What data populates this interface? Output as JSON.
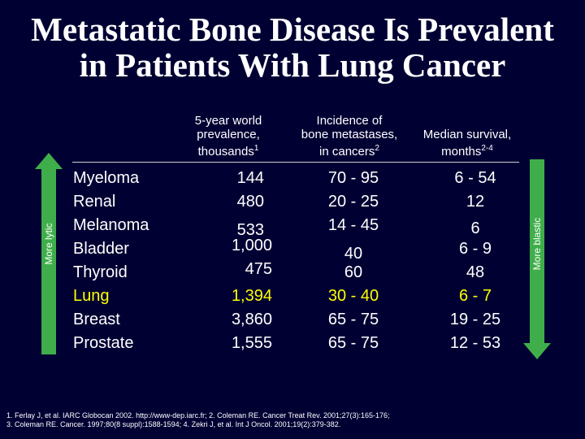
{
  "title": {
    "line1": "Metastatic Bone Disease Is Prevalent",
    "line2": "in Patients With Lung Cancer"
  },
  "headers": {
    "prevalence": {
      "l1": "5-year world",
      "l2": "prevalence,",
      "l3": "thousands",
      "sup": "1"
    },
    "incidence": {
      "l1": "Incidence of",
      "l2": "bone metastases,",
      "l3": "in cancers",
      "sup": "2"
    },
    "survival": {
      "l1": "Median survival,",
      "l2": "months",
      "sup": "2-4"
    }
  },
  "rows": [
    {
      "disease": "Myeloma",
      "prevalence": "144",
      "incidence": "70 - 95",
      "survival": "6 - 54"
    },
    {
      "disease": "Renal",
      "prevalence": "480",
      "incidence": "20 - 25",
      "survival": "12"
    },
    {
      "disease": "Melanoma",
      "prevalence": "533",
      "incidence": "14 - 45",
      "survival": "6"
    },
    {
      "disease": "Bladder",
      "prevalence": "1,000",
      "incidence": "40",
      "survival": "6 - 9"
    },
    {
      "disease": "Thyroid",
      "prevalence": "475",
      "incidence": "60",
      "survival": "48"
    },
    {
      "disease": "Lung",
      "prevalence": "1,394",
      "incidence": "30 - 40",
      "survival": "6 - 7"
    },
    {
      "disease": "Breast",
      "prevalence": "3,860",
      "incidence": "65 - 75",
      "survival": "19 - 25"
    },
    {
      "disease": "Prostate",
      "prevalence": "1,555",
      "incidence": "65 - 75",
      "survival": "12 - 53"
    }
  ],
  "left_arrow_label": "More lytic",
  "right_arrow_label": "More blastic",
  "colors": {
    "background": "#000033",
    "highlight": "#ffff00",
    "arrow_green": "#3fae4a"
  },
  "footnote": {
    "line1": "1. Ferlay J, et al. IARC Globocan 2002. http://www-dep.iarc.fr; 2. Coleman RE. Cancer Treat Rev. 2001;27(3):165-176;",
    "line2": "3. Coleman RE. Cancer. 1997;80(8 suppl):1588-1594; 4. Zekri J, et al. Int J Oncol. 2001;19(2):379-382."
  }
}
